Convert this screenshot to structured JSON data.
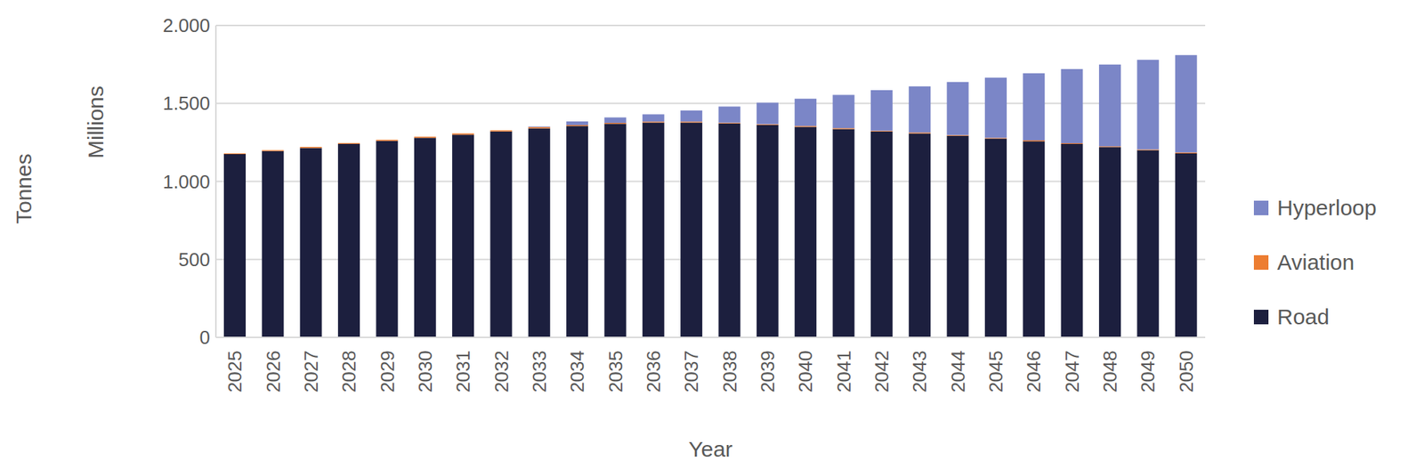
{
  "chart_data": {
    "type": "bar",
    "stacked": true,
    "grid": true,
    "legend": "right",
    "xlabel": "Year",
    "ylabel": "Tonnes",
    "yunit": "Millions",
    "categories": [
      "2025",
      "2026",
      "2027",
      "2028",
      "2029",
      "2030",
      "2031",
      "2032",
      "2033",
      "2034",
      "2035",
      "2036",
      "2037",
      "2038",
      "2039",
      "2040",
      "2041",
      "2042",
      "2043",
      "2044",
      "2045",
      "2046",
      "2047",
      "2048",
      "2049",
      "2050"
    ],
    "series": [
      {
        "name": "Road",
        "color": "#1c1f3e",
        "values": [
          1175,
          1195,
          1215,
          1240,
          1260,
          1280,
          1300,
          1320,
          1340,
          1355,
          1370,
          1378,
          1378,
          1372,
          1362,
          1350,
          1336,
          1320,
          1308,
          1292,
          1275,
          1258,
          1240,
          1220,
          1200,
          1180
        ]
      },
      {
        "name": "Aviation",
        "color": "#ed7d31",
        "values": [
          5,
          5,
          6,
          6,
          7,
          7,
          8,
          8,
          9,
          6,
          5,
          5,
          5,
          5,
          5,
          5,
          5,
          5,
          5,
          5,
          5,
          5,
          5,
          5,
          5,
          5
        ]
      },
      {
        "name": "Hyperloop",
        "color": "#7b86c7",
        "values": [
          0,
          0,
          0,
          0,
          0,
          0,
          0,
          0,
          3,
          24,
          35,
          47,
          72,
          103,
          138,
          175,
          214,
          260,
          297,
          341,
          385,
          430,
          475,
          525,
          575,
          625
        ]
      }
    ],
    "ylim": [
      0,
      2000
    ],
    "yticks": [
      0,
      500,
      {
        "value": 1000,
        "label": "1.000"
      },
      {
        "value": 1500,
        "label": "1.500"
      },
      {
        "value": 2000,
        "label": "2.000"
      }
    ]
  }
}
